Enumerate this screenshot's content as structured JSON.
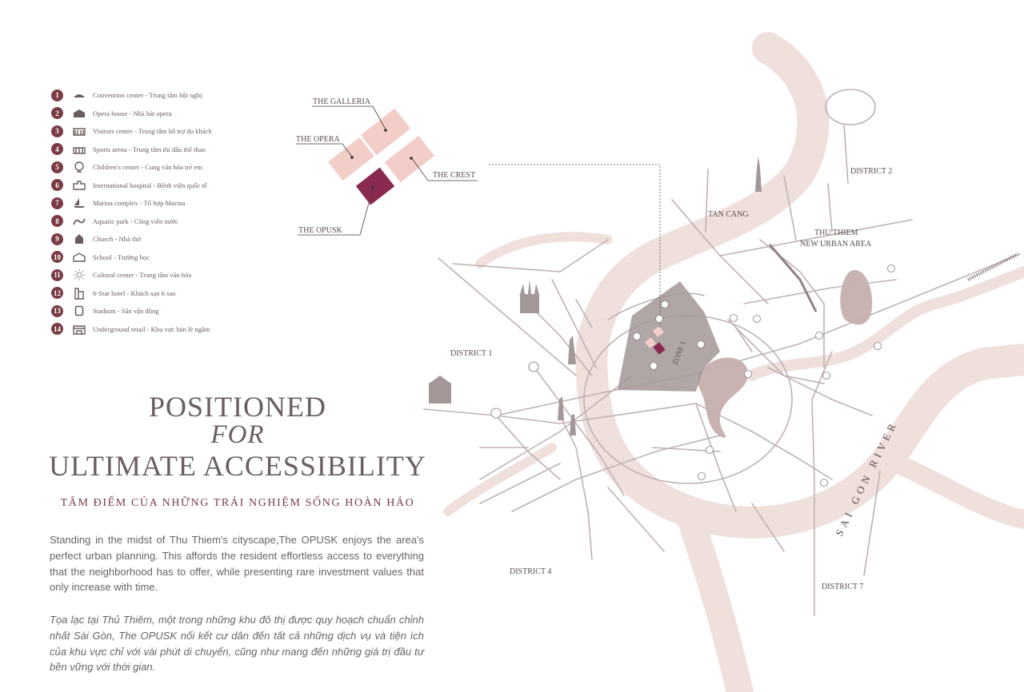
{
  "legend": [
    {
      "num": "1",
      "icon": "convention-icon",
      "label": "Convention center - Trung tâm hội nghị"
    },
    {
      "num": "2",
      "icon": "opera-icon",
      "label": "Opera house - Nhà hát opera"
    },
    {
      "num": "3",
      "icon": "visitors-icon",
      "label": "Visitors center - Trung tâm hỗ trợ du khách"
    },
    {
      "num": "4",
      "icon": "sports-icon",
      "label": "Sports arena - Trung tâm thi đấu thể thao"
    },
    {
      "num": "5",
      "icon": "globe-icon",
      "label": "Children's center - Cung văn hóa trẻ em"
    },
    {
      "num": "6",
      "icon": "hospital-icon",
      "label": "International hospital - Bệnh viện quốc tế"
    },
    {
      "num": "7",
      "icon": "sailboat-icon",
      "label": "Marina complex - Tổ hợp Marina"
    },
    {
      "num": "8",
      "icon": "wave-icon",
      "label": "Aquatic park - Công viên nước"
    },
    {
      "num": "9",
      "icon": "church-icon",
      "label": "Church - Nhà thờ"
    },
    {
      "num": "10",
      "icon": "school-icon",
      "label": "School - Trường học"
    },
    {
      "num": "11",
      "icon": "sun-icon",
      "label": "Cultural center - Trung tâm văn hóa"
    },
    {
      "num": "12",
      "icon": "hotel-icon",
      "label": "6-Star hotel - Khách sạn 6 sao"
    },
    {
      "num": "13",
      "icon": "stadium-icon",
      "label": "Stadium - Sân vận động"
    },
    {
      "num": "14",
      "icon": "retail-icon",
      "label": "Underground retail - Khu vực bán lẻ ngầm"
    }
  ],
  "blocks": {
    "galleria": "THE GALLERIA",
    "opera": "THE OPERA",
    "crest": "THE CREST",
    "opusk": "THE OPUSK"
  },
  "headline": {
    "line1": "POSITIONED",
    "line2": "FOR",
    "line3": "ULTIMATE ACCESSIBILITY",
    "subtitle": "TÂM ĐIỂM CỦA NHỮNG TRẢI NGHIỆM SỐNG HOÀN HẢO"
  },
  "body": {
    "en": "Standing in the midst of Thu Thiem's cityscape,The OPUSK enjoys the area's perfect urban planning. This affords the resident effortless access to everything that the neighborhood has to offer, while presenting rare investment values that only increase with time.",
    "vi": "Tọa lạc tại Thủ Thiêm, một trong những khu đô thị được quy hoạch chuẩn chỉnh nhất Sài Gòn, The OPUSK nối kết cư dân đến tất cả những dịch vụ và tiện ích của khu vực chỉ với vài phút di chuyển, cũng như mang đến những giá trị đầu tư bền vững với thời gian."
  },
  "map": {
    "district1": "DISTRICT 1",
    "district2": "DISTRICT 2",
    "district4": "DISTRICT 4",
    "district7": "DISTRICT 7",
    "tan_cang": "TAN CANG",
    "thu_thiem_1": "THU THIEM",
    "thu_thiem_2": "NEW URBAN AREA",
    "river": "SAI GON RIVER",
    "zone": "ZONE 1"
  },
  "colors": {
    "accent": "#7a3b44",
    "river": "#efe0dc",
    "block_light": "#f3cdc8",
    "block_dark": "#8a2a52",
    "zone": "#a39797",
    "road": "#b7a9a8"
  }
}
